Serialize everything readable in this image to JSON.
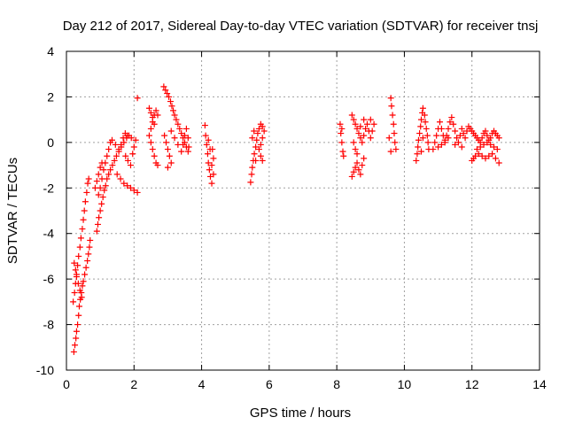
{
  "chart_data": {
    "type": "scatter",
    "title": "Day 212 of 2017, Sidereal Day-to-day VTEC variation (SDTVAR) for receiver tnsj",
    "xlabel": "GPS time / hours",
    "ylabel": "SDTVAR / TECUs",
    "xlim": [
      0,
      14
    ],
    "ylim": [
      -10,
      4
    ],
    "xticks": [
      "0",
      "2",
      "4",
      "6",
      "8",
      "10",
      "12",
      "14"
    ],
    "yticks": [
      "-10",
      "-8",
      "-6",
      "-4",
      "-2",
      "0",
      "2",
      "4"
    ],
    "grid": true,
    "marker": "plus",
    "series_color": "#ff0000",
    "series": [
      {
        "name": "SDTVAR",
        "points": [
          [
            0.22,
            -9.2
          ],
          [
            0.25,
            -8.9
          ],
          [
            0.28,
            -8.6
          ],
          [
            0.3,
            -8.3
          ],
          [
            0.33,
            -8.0
          ],
          [
            0.36,
            -7.6
          ],
          [
            0.38,
            -7.2
          ],
          [
            0.41,
            -6.9
          ],
          [
            0.44,
            -6.6
          ],
          [
            0.47,
            -6.3
          ],
          [
            0.2,
            -7.0
          ],
          [
            0.24,
            -6.6
          ],
          [
            0.27,
            -6.2
          ],
          [
            0.3,
            -5.8
          ],
          [
            0.33,
            -5.4
          ],
          [
            0.36,
            -5.0
          ],
          [
            0.4,
            -4.6
          ],
          [
            0.43,
            -4.2
          ],
          [
            0.47,
            -3.8
          ],
          [
            0.5,
            -3.4
          ],
          [
            0.53,
            -3.0
          ],
          [
            0.56,
            -2.6
          ],
          [
            0.6,
            -2.2
          ],
          [
            0.63,
            -1.8
          ],
          [
            0.66,
            -1.6
          ],
          [
            0.5,
            -6.1
          ],
          [
            0.54,
            -5.8
          ],
          [
            0.58,
            -5.5
          ],
          [
            0.62,
            -5.2
          ],
          [
            0.65,
            -4.9
          ],
          [
            0.68,
            -4.6
          ],
          [
            0.7,
            -4.3
          ],
          [
            0.23,
            -5.3
          ],
          [
            0.27,
            -5.6
          ],
          [
            0.3,
            -5.9
          ],
          [
            0.35,
            -6.2
          ],
          [
            0.4,
            -6.5
          ],
          [
            0.45,
            -6.8
          ],
          [
            0.9,
            -3.9
          ],
          [
            0.93,
            -3.6
          ],
          [
            0.96,
            -3.3
          ],
          [
            1.0,
            -3.0
          ],
          [
            1.04,
            -2.7
          ],
          [
            1.08,
            -2.4
          ],
          [
            1.12,
            -2.1
          ],
          [
            1.16,
            -1.9
          ],
          [
            1.2,
            -1.6
          ],
          [
            1.25,
            -1.4
          ],
          [
            1.3,
            -1.2
          ],
          [
            1.36,
            -1.0
          ],
          [
            1.42,
            -0.8
          ],
          [
            1.48,
            -0.6
          ],
          [
            1.55,
            -0.4
          ],
          [
            1.62,
            -0.2
          ],
          [
            1.7,
            0.0
          ],
          [
            1.78,
            0.2
          ],
          [
            1.85,
            0.3
          ],
          [
            1.92,
            0.2
          ],
          [
            0.95,
            -2.3
          ],
          [
            1.0,
            -2.0
          ],
          [
            1.05,
            -1.6
          ],
          [
            1.1,
            -1.2
          ],
          [
            1.15,
            -0.9
          ],
          [
            1.2,
            -0.6
          ],
          [
            1.25,
            -0.3
          ],
          [
            1.3,
            0.0
          ],
          [
            1.35,
            0.1
          ],
          [
            1.45,
            -0.1
          ],
          [
            1.55,
            -0.3
          ],
          [
            1.62,
            -0.1
          ],
          [
            1.68,
            0.2
          ],
          [
            1.74,
            0.4
          ],
          [
            1.8,
            0.3
          ],
          [
            0.85,
            -2.0
          ],
          [
            0.9,
            -1.7
          ],
          [
            0.95,
            -1.4
          ],
          [
            1.0,
            -1.1
          ],
          [
            1.05,
            -0.9
          ],
          [
            1.5,
            -1.4
          ],
          [
            1.6,
            -1.6
          ],
          [
            1.7,
            -1.8
          ],
          [
            1.8,
            -1.9
          ],
          [
            1.9,
            -2.0
          ],
          [
            2.0,
            -2.1
          ],
          [
            2.1,
            -2.2
          ],
          [
            1.75,
            -0.6
          ],
          [
            1.82,
            -0.8
          ],
          [
            1.9,
            -1.0
          ],
          [
            1.96,
            -0.5
          ],
          [
            2.0,
            -0.2
          ],
          [
            2.05,
            0.1
          ],
          [
            2.1,
            1.95
          ],
          [
            2.45,
            1.5
          ],
          [
            2.5,
            1.3
          ],
          [
            2.55,
            1.1
          ],
          [
            2.6,
            0.8
          ],
          [
            2.5,
            0.6
          ],
          [
            2.45,
            0.3
          ],
          [
            2.5,
            0.0
          ],
          [
            2.55,
            -0.3
          ],
          [
            2.6,
            -0.6
          ],
          [
            2.65,
            -0.9
          ],
          [
            2.7,
            -1.0
          ],
          [
            2.55,
            0.9
          ],
          [
            2.6,
            1.2
          ],
          [
            2.65,
            1.4
          ],
          [
            2.7,
            1.2
          ],
          [
            2.88,
            2.45
          ],
          [
            2.93,
            2.3
          ],
          [
            2.98,
            2.15
          ],
          [
            3.03,
            2.0
          ],
          [
            3.08,
            1.8
          ],
          [
            3.12,
            1.6
          ],
          [
            3.16,
            1.4
          ],
          [
            3.2,
            1.2
          ],
          [
            3.25,
            1.0
          ],
          [
            3.3,
            0.8
          ],
          [
            3.35,
            0.6
          ],
          [
            3.4,
            0.4
          ],
          [
            3.45,
            0.2
          ],
          [
            3.5,
            0.0
          ],
          [
            3.55,
            -0.2
          ],
          [
            3.6,
            -0.4
          ],
          [
            2.9,
            0.3
          ],
          [
            2.95,
            0.0
          ],
          [
            3.0,
            -0.3
          ],
          [
            3.05,
            -0.6
          ],
          [
            3.1,
            -0.9
          ],
          [
            3.0,
            -1.1
          ],
          [
            3.1,
            0.5
          ],
          [
            3.2,
            0.2
          ],
          [
            3.3,
            -0.1
          ],
          [
            3.4,
            -0.4
          ],
          [
            3.45,
            -0.1
          ],
          [
            3.5,
            0.3
          ],
          [
            3.55,
            0.6
          ],
          [
            3.6,
            0.2
          ],
          [
            3.62,
            -0.2
          ],
          [
            4.1,
            0.75
          ],
          [
            4.12,
            0.3
          ],
          [
            4.15,
            -0.1
          ],
          [
            4.18,
            -0.5
          ],
          [
            4.2,
            -0.9
          ],
          [
            4.23,
            -1.2
          ],
          [
            4.26,
            -1.5
          ],
          [
            4.3,
            -1.8
          ],
          [
            4.32,
            -0.3
          ],
          [
            4.35,
            -0.7
          ],
          [
            4.2,
            0.1
          ],
          [
            4.25,
            -0.3
          ],
          [
            4.3,
            -1.0
          ],
          [
            4.35,
            -1.4
          ],
          [
            5.45,
            -1.75
          ],
          [
            5.48,
            -1.4
          ],
          [
            5.5,
            -1.1
          ],
          [
            5.53,
            -0.8
          ],
          [
            5.56,
            -0.5
          ],
          [
            5.6,
            -0.2
          ],
          [
            5.63,
            0.1
          ],
          [
            5.66,
            0.4
          ],
          [
            5.7,
            0.6
          ],
          [
            5.75,
            0.8
          ],
          [
            5.8,
            0.7
          ],
          [
            5.85,
            0.5
          ],
          [
            5.8,
            0.2
          ],
          [
            5.75,
            -0.1
          ],
          [
            5.7,
            -0.3
          ],
          [
            5.75,
            -0.6
          ],
          [
            5.8,
            -0.8
          ],
          [
            5.5,
            0.2
          ],
          [
            5.55,
            0.5
          ],
          [
            5.6,
            -0.8
          ],
          [
            8.1,
            0.8
          ],
          [
            8.12,
            0.4
          ],
          [
            8.15,
            0.0
          ],
          [
            8.18,
            -0.4
          ],
          [
            8.2,
            -0.6
          ],
          [
            8.15,
            0.6
          ],
          [
            8.45,
            -1.5
          ],
          [
            8.5,
            -1.3
          ],
          [
            8.55,
            -1.1
          ],
          [
            8.6,
            -0.9
          ],
          [
            8.65,
            -1.2
          ],
          [
            8.7,
            -1.4
          ],
          [
            8.75,
            -1.0
          ],
          [
            8.8,
            -0.7
          ],
          [
            8.45,
            1.2
          ],
          [
            8.5,
            1.0
          ],
          [
            8.55,
            0.8
          ],
          [
            8.6,
            0.6
          ],
          [
            8.65,
            0.4
          ],
          [
            8.7,
            0.2
          ],
          [
            8.75,
            0.0
          ],
          [
            8.8,
            0.3
          ],
          [
            8.85,
            0.6
          ],
          [
            8.9,
            0.8
          ],
          [
            8.95,
            0.5
          ],
          [
            9.0,
            0.2
          ],
          [
            9.05,
            0.5
          ],
          [
            9.1,
            0.8
          ],
          [
            9.0,
            1.0
          ],
          [
            8.5,
            0.0
          ],
          [
            8.55,
            -0.3
          ],
          [
            8.6,
            -0.5
          ],
          [
            8.7,
            0.7
          ],
          [
            8.8,
            1.0
          ],
          [
            9.6,
            1.95
          ],
          [
            9.62,
            1.6
          ],
          [
            9.65,
            1.2
          ],
          [
            9.68,
            0.8
          ],
          [
            9.7,
            0.4
          ],
          [
            9.72,
            0.0
          ],
          [
            9.75,
            -0.3
          ],
          [
            9.6,
            -0.4
          ],
          [
            9.55,
            0.2
          ],
          [
            10.35,
            -0.8
          ],
          [
            10.38,
            -0.5
          ],
          [
            10.4,
            -0.2
          ],
          [
            10.42,
            0.1
          ],
          [
            10.45,
            0.4
          ],
          [
            10.48,
            0.7
          ],
          [
            10.5,
            1.0
          ],
          [
            10.53,
            1.3
          ],
          [
            10.55,
            1.5
          ],
          [
            10.6,
            1.2
          ],
          [
            10.62,
            0.9
          ],
          [
            10.65,
            0.6
          ],
          [
            10.68,
            0.3
          ],
          [
            10.7,
            0.0
          ],
          [
            10.72,
            -0.3
          ],
          [
            10.5,
            -0.4
          ],
          [
            10.55,
            0.2
          ],
          [
            10.85,
            -0.3
          ],
          [
            10.9,
            0.0
          ],
          [
            10.95,
            0.3
          ],
          [
            11.0,
            0.6
          ],
          [
            11.05,
            0.9
          ],
          [
            11.1,
            0.6
          ],
          [
            11.15,
            0.3
          ],
          [
            11.2,
            0.0
          ],
          [
            11.25,
            0.3
          ],
          [
            11.3,
            0.6
          ],
          [
            11.35,
            0.9
          ],
          [
            11.4,
            1.1
          ],
          [
            11.45,
            0.8
          ],
          [
            11.5,
            0.5
          ],
          [
            11.55,
            0.2
          ],
          [
            11.6,
            0.0
          ],
          [
            11.65,
            0.3
          ],
          [
            11.7,
            0.6
          ],
          [
            11.75,
            0.4
          ],
          [
            11.8,
            0.2
          ],
          [
            11.85,
            0.5
          ],
          [
            11.9,
            0.7
          ],
          [
            11.95,
            0.6
          ],
          [
            12.0,
            0.5
          ],
          [
            12.05,
            0.4
          ],
          [
            12.1,
            0.3
          ],
          [
            12.15,
            0.2
          ],
          [
            12.2,
            0.1
          ],
          [
            12.25,
            0.0
          ],
          [
            12.3,
            0.2
          ],
          [
            12.35,
            0.4
          ],
          [
            12.4,
            0.5
          ],
          [
            12.45,
            0.3
          ],
          [
            12.5,
            0.1
          ],
          [
            12.55,
            0.2
          ],
          [
            12.6,
            0.4
          ],
          [
            12.65,
            0.5
          ],
          [
            12.7,
            0.4
          ],
          [
            12.75,
            0.3
          ],
          [
            12.8,
            0.2
          ],
          [
            11.0,
            -0.2
          ],
          [
            11.1,
            -0.1
          ],
          [
            11.2,
            0.1
          ],
          [
            11.3,
            0.2
          ],
          [
            11.5,
            -0.1
          ],
          [
            11.7,
            -0.2
          ],
          [
            12.0,
            -0.8
          ],
          [
            12.05,
            -0.7
          ],
          [
            12.1,
            -0.6
          ],
          [
            12.2,
            -0.5
          ],
          [
            12.3,
            -0.6
          ],
          [
            12.4,
            -0.7
          ],
          [
            12.5,
            -0.6
          ],
          [
            12.6,
            -0.5
          ],
          [
            12.7,
            -0.7
          ],
          [
            12.8,
            -0.9
          ],
          [
            12.15,
            -0.3
          ],
          [
            12.25,
            -0.2
          ],
          [
            12.35,
            -0.1
          ],
          [
            12.45,
            0.0
          ],
          [
            12.55,
            -0.1
          ],
          [
            12.65,
            -0.2
          ],
          [
            12.75,
            -0.3
          ]
        ]
      }
    ]
  }
}
